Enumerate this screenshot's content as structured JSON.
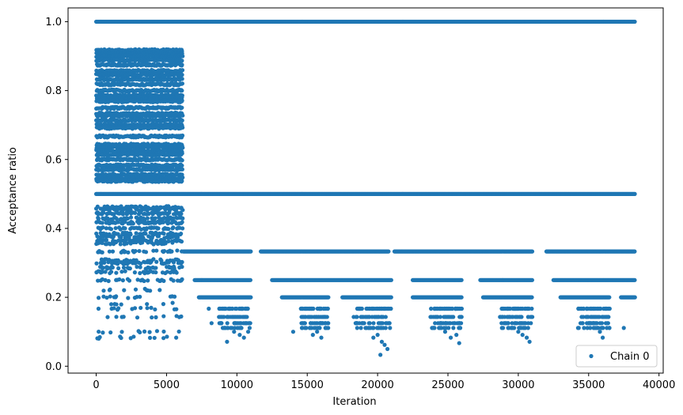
{
  "chart_data": {
    "type": "scatter",
    "xlabel": "Iteration",
    "ylabel": "Acceptance ratio",
    "xlim": [
      -2000,
      40300
    ],
    "ylim": [
      -0.02,
      1.04
    ],
    "xticks": [
      0,
      5000,
      10000,
      15000,
      20000,
      25000,
      30000,
      35000,
      40000
    ],
    "yticks": [
      0.0,
      0.2,
      0.4,
      0.6,
      0.8,
      1.0
    ],
    "xtick_labels": [
      "0",
      "5000",
      "10000",
      "15000",
      "20000",
      "25000",
      "30000",
      "35000",
      "40000"
    ],
    "ytick_labels": [
      "0.0",
      "0.2",
      "0.4",
      "0.6",
      "0.8",
      "1.0"
    ],
    "grid": false,
    "legend": {
      "placement": "bottom-right",
      "entries": [
        "Chain 0"
      ]
    },
    "series": [
      {
        "name": "Chain 0",
        "color": "#1f77b4",
        "marker": "circle",
        "bands": [
          {
            "y": 1.0,
            "x_range": [
              0,
              38300
            ],
            "dense_from": 6000
          },
          {
            "y": 0.5,
            "x_range": [
              0,
              38300
            ]
          },
          {
            "y": 0.333,
            "segments": [
              [
                6200,
                11000
              ],
              [
                11700,
                20800
              ],
              [
                21200,
                31000
              ],
              [
                32000,
                38300
              ]
            ]
          },
          {
            "y": 0.25,
            "segments": [
              [
                7000,
                11000
              ],
              [
                12500,
                21000
              ],
              [
                22500,
                26000
              ],
              [
                27300,
                31000
              ],
              [
                32500,
                38300
              ]
            ]
          },
          {
            "y": 0.2,
            "segments": [
              [
                7300,
                11000
              ],
              [
                13200,
                16500
              ],
              [
                17500,
                21000
              ],
              [
                22500,
                26000
              ],
              [
                27500,
                31000
              ],
              [
                33000,
                36500
              ],
              [
                37300,
                38300
              ]
            ]
          }
        ],
        "early_region": {
          "x_range": [
            0,
            6100
          ],
          "y_levels": [
            0.917,
            0.909,
            0.9,
            0.889,
            0.875,
            0.857,
            0.846,
            0.833,
            0.818,
            0.8,
            0.786,
            0.778,
            0.769,
            0.75,
            0.733,
            0.727,
            0.714,
            0.7,
            0.692,
            0.667,
            0.643,
            0.636,
            0.625,
            0.615,
            0.6,
            0.583,
            0.571,
            0.556,
            0.545,
            0.538,
            0.462,
            0.455,
            0.444,
            0.429,
            0.417,
            0.4,
            0.385,
            0.375,
            0.364,
            0.357,
            0.333,
            0.308,
            0.3,
            0.286,
            0.273,
            0.25,
            0.222,
            0.2,
            0.182,
            0.167,
            0.143,
            0.1,
            0.083
          ]
        },
        "tail_points": [
          [
            8000,
            0.167
          ],
          [
            8200,
            0.125
          ],
          [
            8900,
            0.143
          ],
          [
            9200,
            0.111
          ],
          [
            9300,
            0.071
          ],
          [
            9800,
            0.1
          ],
          [
            10200,
            0.091
          ],
          [
            10500,
            0.083
          ],
          [
            10800,
            0.1
          ],
          [
            10900,
            0.125
          ],
          [
            14000,
            0.1
          ],
          [
            14700,
            0.125
          ],
          [
            15200,
            0.111
          ],
          [
            15400,
            0.091
          ],
          [
            15700,
            0.1
          ],
          [
            16000,
            0.083
          ],
          [
            18300,
            0.143
          ],
          [
            19000,
            0.125
          ],
          [
            19500,
            0.111
          ],
          [
            20000,
            0.091
          ],
          [
            20300,
            0.071
          ],
          [
            20500,
            0.062
          ],
          [
            20700,
            0.05
          ],
          [
            20200,
            0.033
          ],
          [
            19700,
            0.083
          ],
          [
            24300,
            0.125
          ],
          [
            24800,
            0.1
          ],
          [
            25200,
            0.083
          ],
          [
            25600,
            0.091
          ],
          [
            25800,
            0.067
          ],
          [
            28700,
            0.143
          ],
          [
            29500,
            0.111
          ],
          [
            30000,
            0.1
          ],
          [
            30300,
            0.091
          ],
          [
            30600,
            0.083
          ],
          [
            30800,
            0.071
          ],
          [
            34500,
            0.143
          ],
          [
            35000,
            0.125
          ],
          [
            35400,
            0.111
          ],
          [
            35800,
            0.1
          ],
          [
            36000,
            0.083
          ],
          [
            37500,
            0.111
          ]
        ]
      }
    ]
  }
}
